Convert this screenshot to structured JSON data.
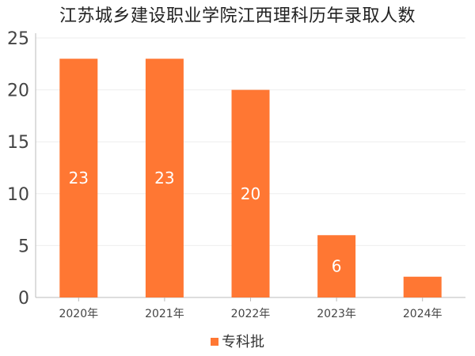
{
  "chart_data": {
    "type": "bar",
    "title": "江苏城乡建设职业学院江西理科历年录取人数",
    "categories": [
      "2020年",
      "2021年",
      "2022年",
      "2023年",
      "2024年"
    ],
    "series": [
      {
        "name": "专科批",
        "values": [
          23,
          23,
          20,
          6,
          2
        ],
        "color": "#ff7733"
      }
    ],
    "data_labels": [
      "23",
      "23",
      "20",
      "6",
      ""
    ],
    "ylim": [
      0,
      25
    ],
    "yticks": [
      0,
      5,
      10,
      15,
      20,
      25
    ],
    "grid": true,
    "legend_position": "bottom"
  }
}
